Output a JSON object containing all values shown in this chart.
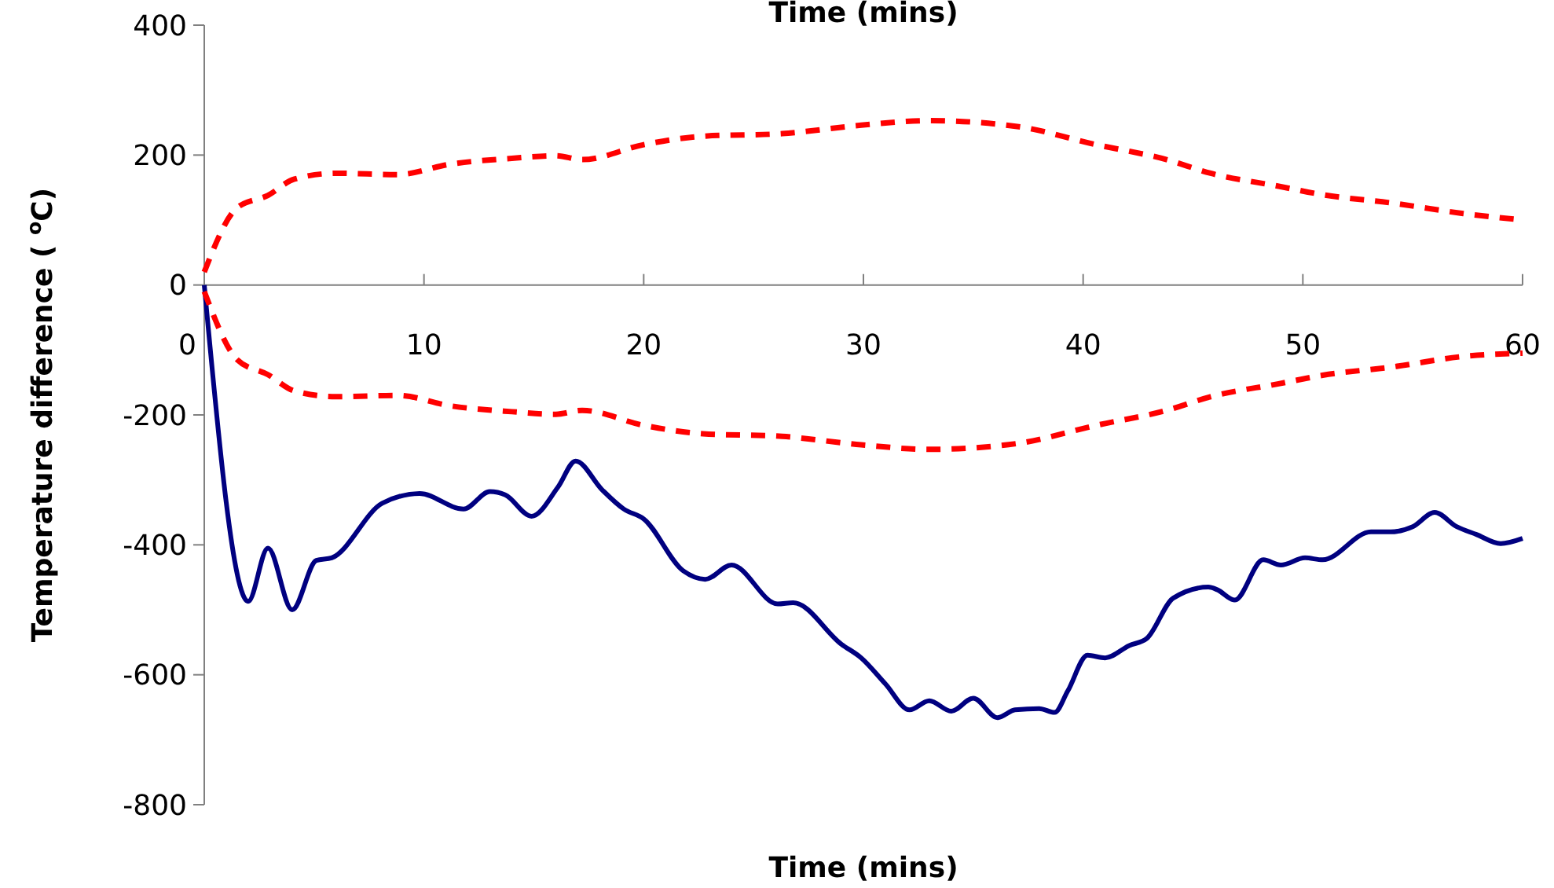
{
  "chart_data": {
    "type": "line",
    "title": "Time (mins)",
    "xlabel": "Time (mins)",
    "ylabel": "Temperature difference ( $^{o}$C)",
    "xlim": [
      0,
      60
    ],
    "xticks": [
      0,
      10,
      20,
      30,
      40,
      50,
      60
    ],
    "ylim": [
      -800,
      400
    ],
    "yticks": [
      -800,
      -600,
      -400,
      -200,
      0,
      200,
      400
    ],
    "grid": false,
    "series": [
      {
        "color": "#000080",
        "line_style": "solid",
        "x": [
          0,
          2.0,
          2.9,
          4.0,
          5.1,
          5.8,
          8.1,
          9.8,
          11.8,
          13.0,
          13.7,
          14.9,
          16.1,
          16.9,
          18.1,
          19.1,
          20.0,
          21.8,
          22.8,
          24.0,
          26.1,
          26.8,
          29.0,
          29.9,
          31.0,
          32.1,
          33.0,
          34.0,
          35.0,
          36.1,
          36.9,
          38.0,
          38.7,
          39.3,
          40.2,
          41.0,
          42.1,
          42.9,
          44.1,
          45.7,
          46.1,
          46.9,
          48.2,
          49.0,
          50.1,
          50.9,
          53.1,
          54.0,
          55.0,
          56.0,
          57.0,
          57.9,
          59.0,
          60
        ],
        "values": [
          0,
          -487,
          -405,
          -500,
          -424,
          -420,
          -336,
          -321,
          -345,
          -318,
          -323,
          -356,
          -311,
          -271,
          -315,
          -345,
          -360,
          -440,
          -453,
          -431,
          -491,
          -489,
          -553,
          -574,
          -614,
          -654,
          -640,
          -656,
          -636,
          -666,
          -654,
          -652,
          -658,
          -625,
          -570,
          -574,
          -555,
          -544,
          -482,
          -465,
          -469,
          -485,
          -423,
          -431,
          -420,
          -423,
          -380,
          -380,
          -372,
          -350,
          -372,
          -384,
          -398,
          -390
        ]
      },
      {
        "color": "#ff0000",
        "line_style": "dashed",
        "x": [
          0,
          1.5,
          2.9,
          4.1,
          6.0,
          8.8,
          11.2,
          14.0,
          16.0,
          17.2,
          20.0,
          22.7,
          26.3,
          29.9,
          33.0,
          37.0,
          40.6,
          43.8,
          45.8,
          48.9,
          50.9,
          54.1,
          57.3,
          60
        ],
        "values": [
          20,
          119,
          138,
          163,
          172,
          170,
          186,
          195,
          199,
          193,
          216,
          229,
          233,
          246,
          253,
          244,
          216,
          193,
          172,
          152,
          139,
          126,
          110,
          100
        ]
      },
      {
        "color": "#ff0000",
        "line_style": "dashed",
        "x": [
          0,
          1.5,
          2.9,
          4.1,
          6.0,
          8.8,
          11.2,
          14.0,
          16.0,
          17.2,
          20.0,
          22.7,
          26.3,
          29.9,
          33.0,
          37.0,
          40.6,
          43.8,
          45.8,
          48.9,
          50.9,
          54.1,
          57.3,
          60
        ],
        "values": [
          -10,
          -115,
          -138,
          -163,
          -172,
          -170,
          -186,
          -195,
          -199,
          -193,
          -216,
          -229,
          -233,
          -246,
          -253,
          -244,
          -216,
          -193,
          -172,
          -152,
          -139,
          -126,
          -110,
          -105
        ]
      }
    ]
  }
}
